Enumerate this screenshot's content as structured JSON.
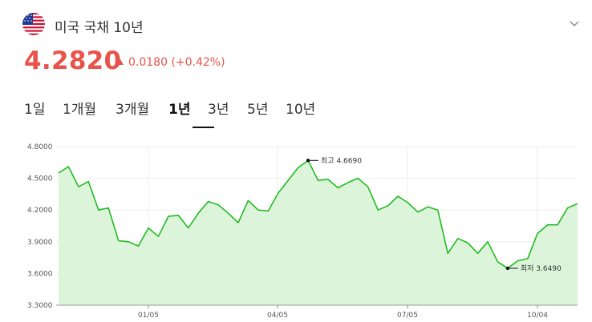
{
  "header": {
    "title": "미국 국채 10년",
    "flag_icon": "us-flag-icon",
    "expand_icon": "chevron-down-icon"
  },
  "quote": {
    "price": "4.2820",
    "change": "0.0180 (+0.42%)",
    "direction": "up",
    "color": "#e8544b"
  },
  "tabs": [
    {
      "label": "1일",
      "active": false
    },
    {
      "label": "1개월",
      "active": false
    },
    {
      "label": "3개월",
      "active": false
    },
    {
      "label": "1년",
      "active": true
    },
    {
      "label": "3년",
      "active": false
    },
    {
      "label": "5년",
      "active": false
    },
    {
      "label": "10년",
      "active": false
    }
  ],
  "chart_data": {
    "type": "area",
    "color": "#22bb22",
    "fill": "#dcf5da",
    "ylim": [
      3.3,
      4.8
    ],
    "y_ticks": [
      "4.8000",
      "4.5000",
      "4.2000",
      "3.9000",
      "3.6000",
      "3.3000"
    ],
    "x_ticks": [
      "01/05",
      "04/05",
      "07/05",
      "10/04"
    ],
    "grid": true,
    "values": [
      4.55,
      4.61,
      4.42,
      4.47,
      4.2,
      4.22,
      3.91,
      3.9,
      3.86,
      4.03,
      3.95,
      4.14,
      4.15,
      4.03,
      4.17,
      4.28,
      4.25,
      4.17,
      4.08,
      4.29,
      4.2,
      4.19,
      4.36,
      4.48,
      4.6,
      4.669,
      4.48,
      4.49,
      4.41,
      4.46,
      4.5,
      4.42,
      4.2,
      4.24,
      4.33,
      4.27,
      4.18,
      4.23,
      4.2,
      3.79,
      3.93,
      3.89,
      3.79,
      3.9,
      3.71,
      3.649,
      3.72,
      3.74,
      3.98,
      4.06,
      4.06,
      4.22,
      4.26
    ],
    "annotations": {
      "high": {
        "label": "최고 4.6690",
        "value": 4.669
      },
      "low": {
        "label": "최저 3.6490",
        "value": 3.649
      }
    }
  }
}
